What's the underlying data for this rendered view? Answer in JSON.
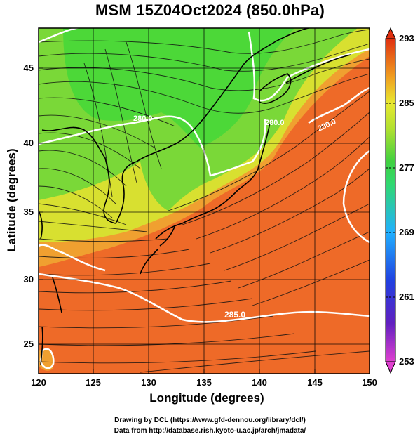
{
  "title": "MSM 15Z04Oct2024 (850.0hPa)",
  "axes": {
    "xlabel": "Longitude (degrees)",
    "ylabel": "Latitude  (degrees)",
    "xticks": [
      "120",
      "125",
      "130",
      "135",
      "140",
      "145",
      "150"
    ],
    "yticks": [
      "25",
      "30",
      "35",
      "40",
      "45"
    ],
    "xlim": [
      120,
      150
    ],
    "ylim": [
      22.4,
      47.6
    ]
  },
  "colorbar": {
    "labels": [
      "293",
      "285",
      "277",
      "269",
      "261",
      "253"
    ],
    "range": [
      253,
      293
    ],
    "colors": [
      "#e040d0",
      "#3030d0",
      "#2060ff",
      "#20c0ff",
      "#30e090",
      "#30d040",
      "#a0e030",
      "#e8e830",
      "#f0a020",
      "#f06020",
      "#e03010"
    ]
  },
  "contour_labels": [
    "280.0",
    "280.0",
    "280.0",
    "280.0",
    "280.0"
  ],
  "contour_label_bottom": "285.0",
  "credits": {
    "line1": "Drawing by DCL (https://www.gfd-dennou.org/library/dcl/)",
    "line2": "Data from http://database.rish.kyoto-u.ac.jp/arch/jmadata/"
  },
  "colors": {
    "warm": "#ee6a28",
    "orange": "#f0a030",
    "yellow": "#d8e030",
    "green": "#5ad838",
    "contour": "#ffffff",
    "coast": "#000000"
  }
}
